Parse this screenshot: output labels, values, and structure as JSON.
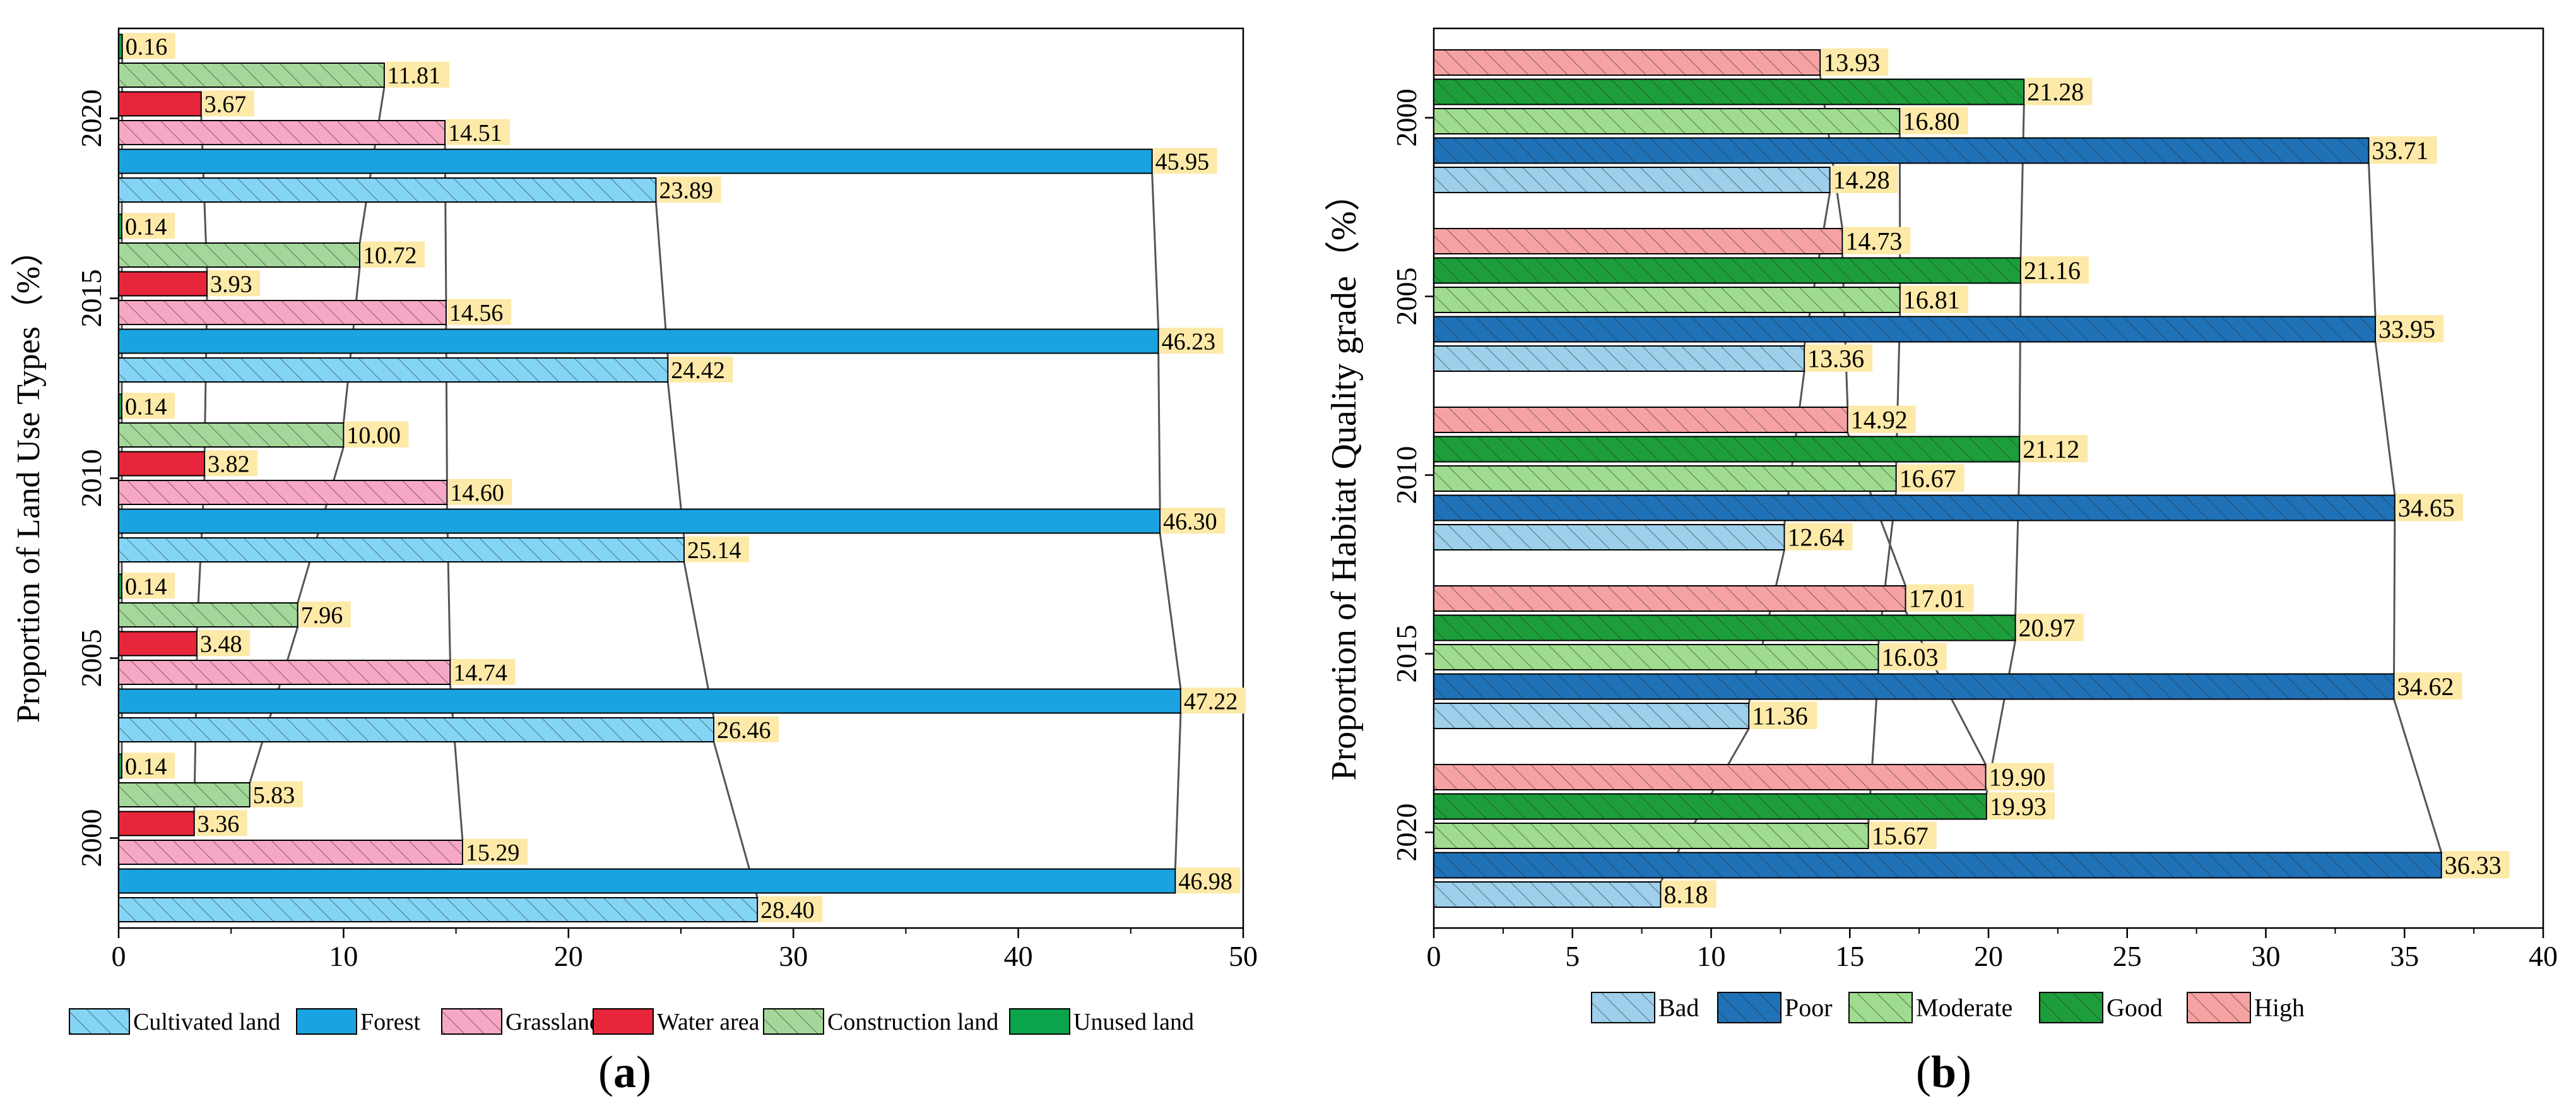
{
  "colors": {
    "cultivated": "#84d5f5",
    "forest": "#1aa3e0",
    "grassland": "#f7a7c6",
    "water": "#e8263b",
    "construction": "#a4d79a",
    "unused": "#0aa44a",
    "bad": "#9ecfeb",
    "poor": "#1f72b8",
    "moderate": "#9fdc8f",
    "good": "#1d9e3a",
    "high": "#f7a2a2",
    "label_bg": "#fde9a8"
  },
  "chart_data": [
    {
      "id": "a",
      "type": "bar",
      "orientation": "horizontal",
      "panel_label": "a",
      "ylabel": "Proportion of Land Use Types（%）",
      "categories": [
        "2000",
        "2005",
        "2010",
        "2015",
        "2020"
      ],
      "xlim": [
        0,
        50
      ],
      "xticks": [
        "0",
        "10",
        "20",
        "30",
        "40",
        "50"
      ],
      "series": [
        {
          "name": "Cultivated land",
          "color_key": "cultivated",
          "hatch": true,
          "labels": [
            "28.40",
            "26.46",
            "25.14",
            "24.42",
            "23.89"
          ],
          "values": [
            28.4,
            26.46,
            25.14,
            24.42,
            23.89
          ]
        },
        {
          "name": "Forest",
          "color_key": "forest",
          "hatch": false,
          "labels": [
            "46.98",
            "47.22",
            "46.30",
            "46.23",
            "45.95"
          ],
          "values": [
            46.98,
            47.22,
            46.3,
            46.23,
            45.95
          ]
        },
        {
          "name": "Grassland",
          "color_key": "grassland",
          "hatch": true,
          "labels": [
            "15.29",
            "14.74",
            "14.60",
            "14.56",
            "14.51"
          ],
          "values": [
            15.29,
            14.74,
            14.6,
            14.56,
            14.51
          ]
        },
        {
          "name": "Water area",
          "color_key": "water",
          "hatch": false,
          "labels": [
            "3.36",
            "3.48",
            "3.82",
            "3.93",
            "3.67"
          ],
          "values": [
            3.36,
            3.48,
            3.82,
            3.93,
            3.67
          ]
        },
        {
          "name": "Construction land",
          "color_key": "construction",
          "hatch": true,
          "labels": [
            "5.83",
            "7.96",
            "10.00",
            "10.72",
            "11.81"
          ],
          "values": [
            5.83,
            7.96,
            10.0,
            10.72,
            11.81
          ]
        },
        {
          "name": "Unused land",
          "color_key": "unused",
          "hatch": false,
          "labels": [
            "0.14",
            "0.14",
            "0.14",
            "0.14",
            "0.16"
          ],
          "values": [
            0.14,
            0.14,
            0.14,
            0.14,
            0.16
          ]
        }
      ],
      "legend": [
        "Cultivated land",
        "Forest",
        "Grassland",
        "Water area",
        "Construction land",
        "Unused land"
      ]
    },
    {
      "id": "b",
      "type": "bar",
      "orientation": "horizontal",
      "panel_label": "b",
      "ylabel": "Proportion of Habitat Quality grade（%）",
      "categories": [
        "2000",
        "2005",
        "2010",
        "2015",
        "2020"
      ],
      "xlim": [
        0,
        40
      ],
      "xticks": [
        "0",
        "5",
        "10",
        "15",
        "20",
        "25",
        "30",
        "35",
        "40"
      ],
      "series": [
        {
          "name": "Bad",
          "color_key": "bad",
          "hatch": true,
          "labels": [
            "14.28",
            "13.36",
            "12.64",
            "11.36",
            "8.18"
          ],
          "values": [
            14.28,
            13.36,
            12.64,
            11.36,
            8.18
          ]
        },
        {
          "name": "Poor",
          "color_key": "poor",
          "hatch": true,
          "labels": [
            "33.71",
            "33.95",
            "34.65",
            "34.62",
            "36.33"
          ],
          "values": [
            33.71,
            33.95,
            34.65,
            34.62,
            36.33
          ]
        },
        {
          "name": "Moderate",
          "color_key": "moderate",
          "hatch": true,
          "labels": [
            "16.80",
            "16.81",
            "16.67",
            "16.03",
            "15.67"
          ],
          "values": [
            16.8,
            16.81,
            16.67,
            16.03,
            15.67
          ]
        },
        {
          "name": "Good",
          "color_key": "good",
          "hatch": true,
          "labels": [
            "21.28",
            "21.16",
            "21.12",
            "20.97",
            "19.93"
          ],
          "values": [
            21.28,
            21.16,
            21.12,
            20.97,
            19.93
          ]
        },
        {
          "name": "High",
          "color_key": "high",
          "hatch": true,
          "labels": [
            "13.93",
            "14.73",
            "14.92",
            "17.01",
            "19.90"
          ],
          "values": [
            13.93,
            14.73,
            14.92,
            17.01,
            19.9
          ]
        }
      ],
      "legend": [
        "Bad",
        "Poor",
        "Moderate",
        "Good",
        "High"
      ]
    }
  ]
}
